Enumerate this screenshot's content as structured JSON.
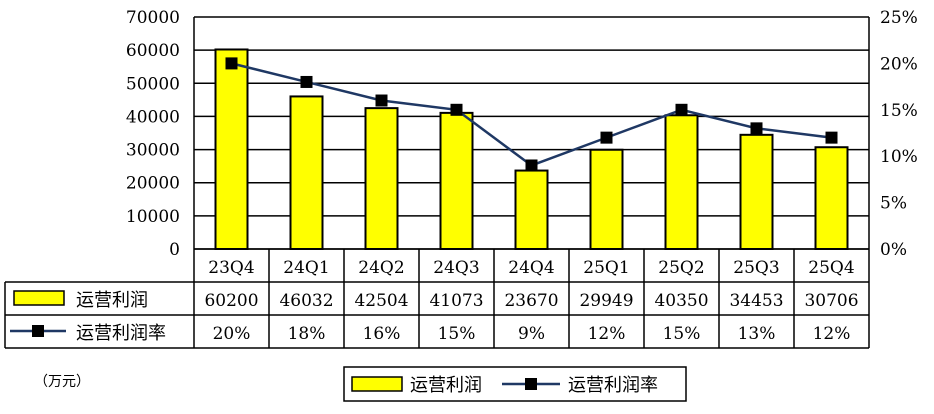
{
  "chart_data": {
    "type": "bar",
    "categories": [
      "23Q4",
      "24Q1",
      "24Q2",
      "24Q3",
      "24Q4",
      "25Q1",
      "25Q2",
      "25Q3",
      "25Q4"
    ],
    "series": [
      {
        "name": "运营利润",
        "type": "bar",
        "axis": "left",
        "values": [
          60200,
          46032,
          42504,
          41073,
          23670,
          29949,
          40350,
          34453,
          30706
        ]
      },
      {
        "name": "运营利润率",
        "type": "line",
        "axis": "right",
        "values": [
          20,
          18,
          16,
          15,
          9,
          12,
          15,
          13,
          12
        ],
        "labels": [
          "20%",
          "18%",
          "16%",
          "15%",
          "9%",
          "12%",
          "15%",
          "13%",
          "12%"
        ]
      }
    ],
    "y_left": {
      "ticks": [
        "0",
        "10000",
        "20000",
        "30000",
        "40000",
        "50000",
        "60000",
        "70000"
      ],
      "min": 0,
      "max": 70000
    },
    "y_right": {
      "ticks": [
        "0%",
        "5%",
        "10%",
        "15%",
        "20%",
        "25%"
      ],
      "min": 0,
      "max": 25
    },
    "unit_note": "（万元）",
    "grid": true,
    "legend_position": "bottom",
    "data_table": true,
    "colors": {
      "bar_fill": "#ffff00",
      "bar_stroke": "#000000",
      "line": "#1f3864",
      "marker": "#000000"
    }
  }
}
